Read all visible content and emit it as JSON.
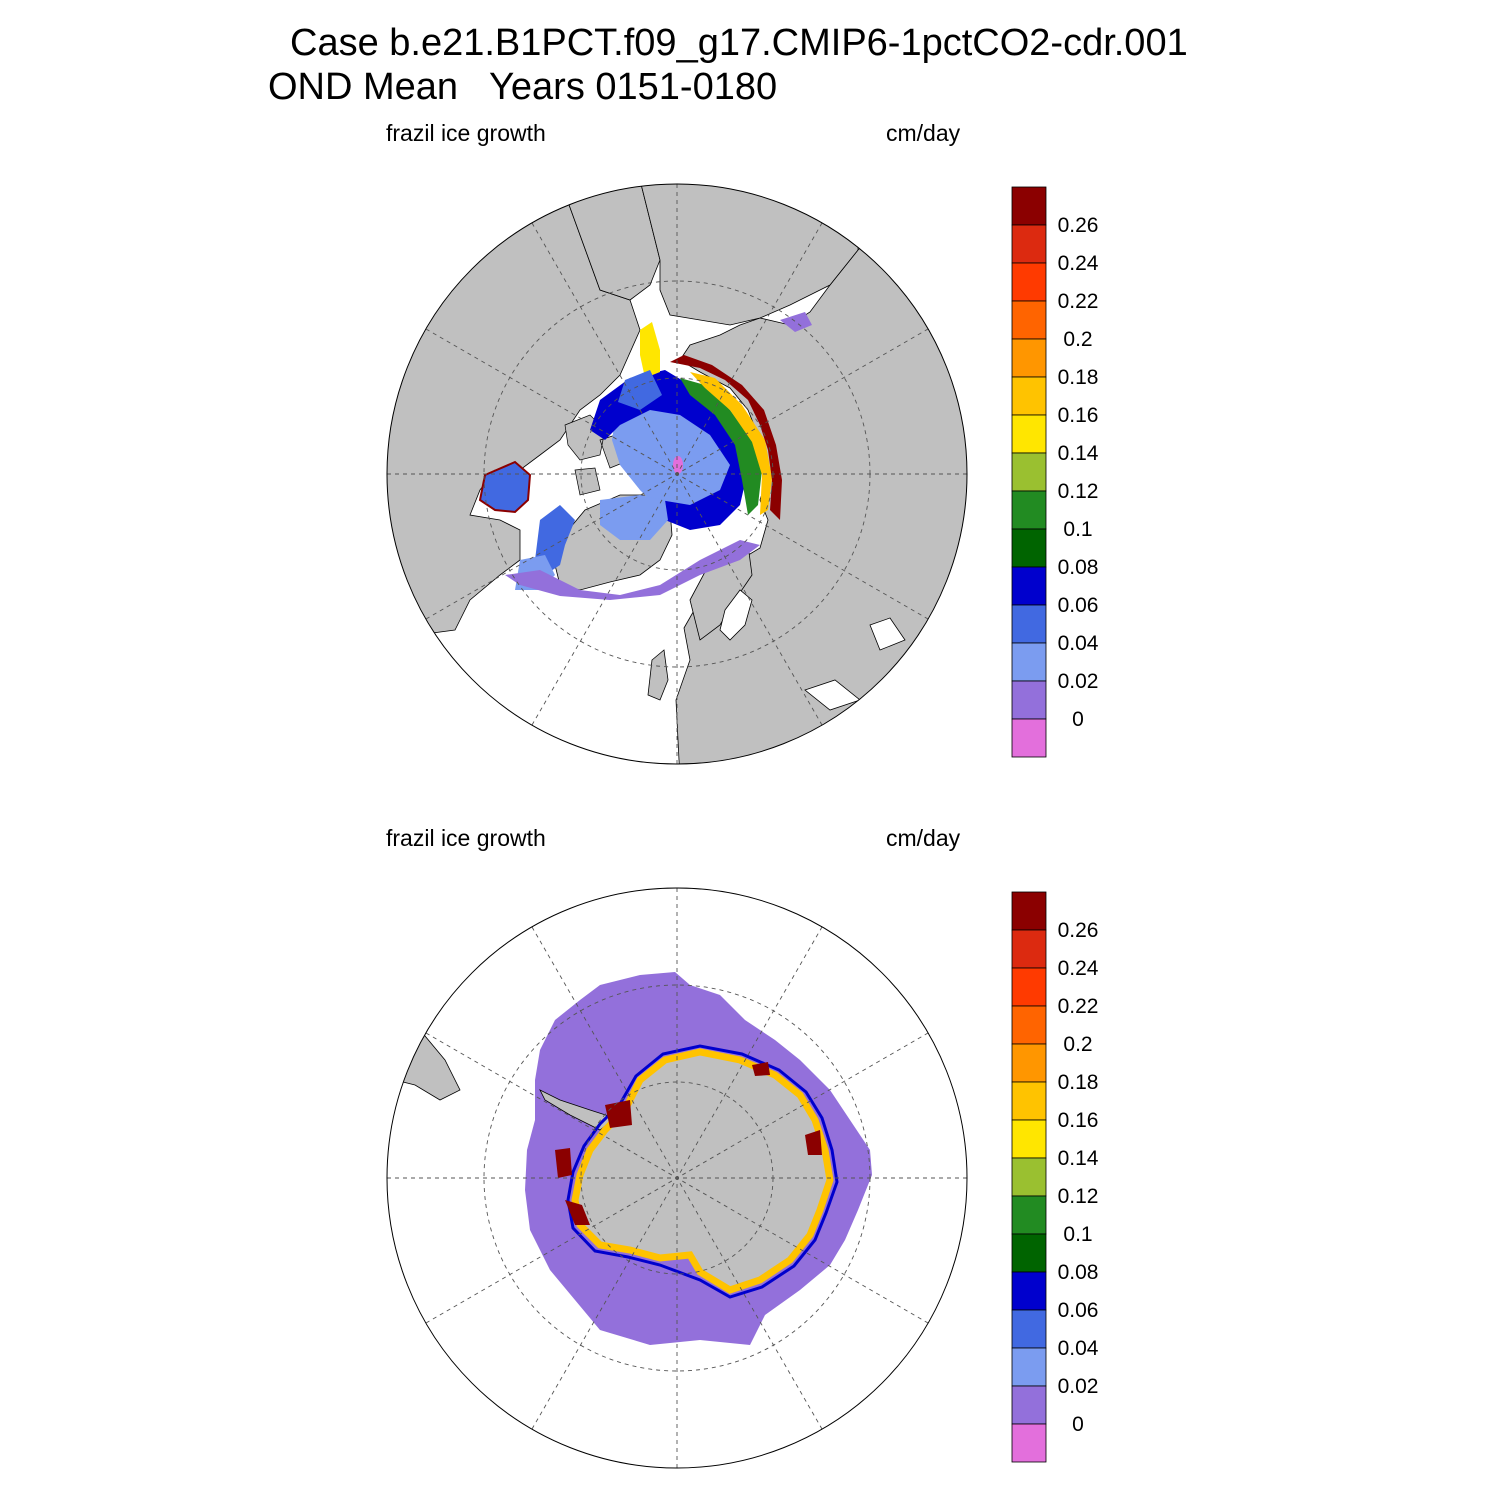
{
  "title": {
    "line1": "Case b.e21.B1PCT.f09_g17.CMIP6-1pctCO2-cdr.001",
    "line2": "OND Mean   Years 0151-0180"
  },
  "panels": [
    {
      "id": "north",
      "variable_label": "frazil ice growth",
      "units_label": "cm/day"
    },
    {
      "id": "south",
      "variable_label": "frazil ice growth",
      "units_label": "cm/day"
    }
  ],
  "colorbar": {
    "labels": [
      "0.26",
      "0.24",
      "0.22",
      "0.2",
      "0.18",
      "0.16",
      "0.14",
      "0.12",
      "0.1",
      "0.08",
      "0.06",
      "0.04",
      "0.02",
      "0"
    ],
    "colors": [
      "#8b0000",
      "#dc2a10",
      "#ff3a00",
      "#ff6400",
      "#ff9600",
      "#ffc300",
      "#ffe600",
      "#9ac030",
      "#228b22",
      "#006400",
      "#0000cd",
      "#4169e1",
      "#7b9cf0",
      "#9370db",
      "#e36fdc"
    ]
  },
  "colors": {
    "land": "#c0c0c0",
    "ocean_no_ice": "#ffffff",
    "grid": "#555555"
  }
}
